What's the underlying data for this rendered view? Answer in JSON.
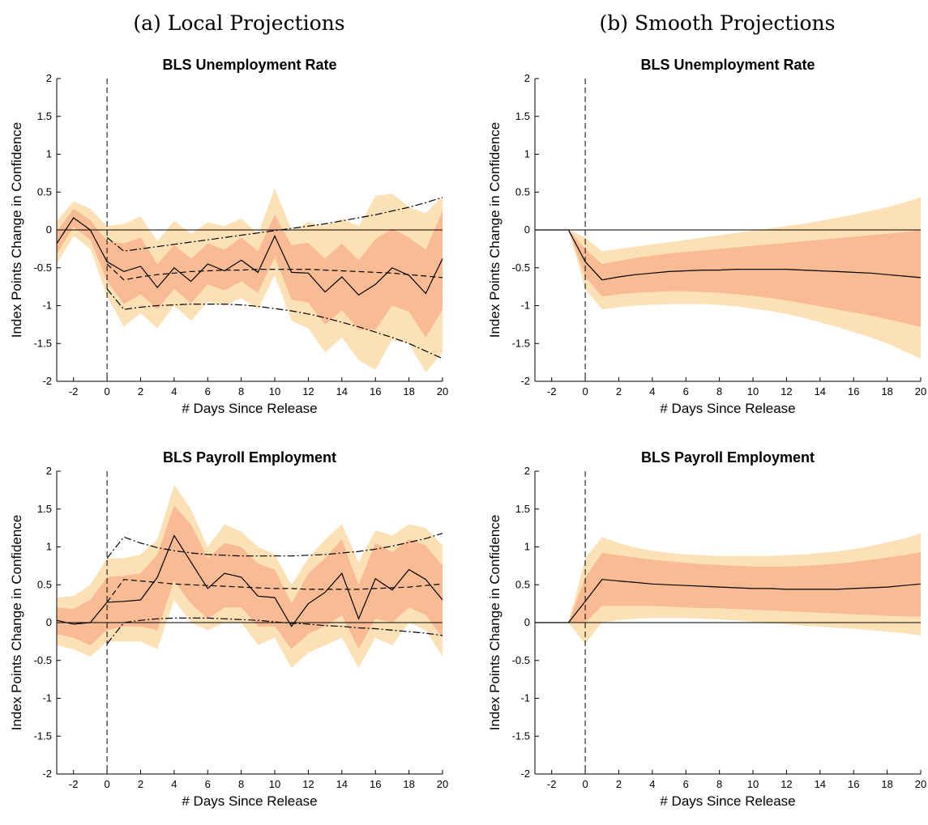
{
  "columns": {
    "left": "(a) Local Projections",
    "right": "(b) Smooth Projections"
  },
  "colors": {
    "band_outer": "#fde1b6",
    "band_inner": "#f9bb93",
    "line": "#000000"
  },
  "chart_data": [
    {
      "type": "line",
      "title": "BLS Unemployment Rate",
      "xlabel": "# Days Since Release",
      "ylabel": "Index Points Change in Confidence",
      "xlim": [
        -3,
        20
      ],
      "ylim": [
        -2,
        2
      ],
      "xticks": [
        "-2",
        "0",
        "2",
        "4",
        "6",
        "8",
        "10",
        "12",
        "14",
        "16",
        "18",
        "20"
      ],
      "yticks": [
        "-2",
        "-1.5",
        "-1",
        "-0.5",
        "0",
        "0.5",
        "1",
        "1.5",
        "2"
      ],
      "x": [
        -3,
        -2,
        -1,
        0,
        1,
        2,
        3,
        4,
        5,
        6,
        7,
        8,
        9,
        10,
        11,
        12,
        13,
        14,
        15,
        16,
        17,
        18,
        19,
        20
      ],
      "series": [
        {
          "role": "point",
          "style": "solid",
          "values": [
            -0.18,
            0.16,
            0.0,
            -0.42,
            -0.55,
            -0.48,
            -0.76,
            -0.5,
            -0.68,
            -0.45,
            -0.54,
            -0.4,
            -0.56,
            -0.08,
            -0.56,
            -0.57,
            -0.82,
            -0.62,
            -0.86,
            -0.72,
            -0.5,
            -0.6,
            -0.84,
            -0.38
          ]
        },
        {
          "role": "band90",
          "low": [
            -0.45,
            -0.08,
            -0.25,
            -0.88,
            -1.28,
            -1.1,
            -1.3,
            -1.0,
            -1.2,
            -0.95,
            -1.0,
            -0.9,
            -1.05,
            -0.6,
            -1.2,
            -1.3,
            -1.62,
            -1.42,
            -1.72,
            -1.85,
            -1.45,
            -1.5,
            -1.88,
            -1.62
          ],
          "high": [
            0.12,
            0.38,
            0.28,
            0.05,
            0.08,
            0.18,
            -0.15,
            0.12,
            -0.05,
            0.1,
            0.05,
            0.15,
            -0.05,
            0.55,
            0.0,
            0.1,
            0.05,
            0.15,
            0.05,
            0.45,
            0.48,
            0.3,
            0.22,
            0.45
          ]
        },
        {
          "role": "band68",
          "low": [
            -0.32,
            0.04,
            -0.13,
            -0.68,
            -0.98,
            -0.85,
            -1.05,
            -0.78,
            -0.97,
            -0.72,
            -0.8,
            -0.68,
            -0.83,
            -0.36,
            -0.92,
            -0.96,
            -1.25,
            -1.06,
            -1.32,
            -1.32,
            -1.0,
            -1.08,
            -1.42,
            -1.05
          ],
          "high": [
            -0.02,
            0.28,
            0.13,
            -0.15,
            -0.18,
            -0.1,
            -0.45,
            -0.2,
            -0.38,
            -0.18,
            -0.26,
            -0.1,
            -0.28,
            0.2,
            -0.2,
            -0.17,
            -0.38,
            -0.18,
            -0.4,
            -0.12,
            0.02,
            -0.1,
            -0.26,
            0.25
          ]
        },
        {
          "role": "smooth",
          "style": "dashed",
          "values": [
            null,
            null,
            null,
            -0.45,
            -0.66,
            -0.62,
            -0.59,
            -0.57,
            -0.55,
            -0.54,
            -0.53,
            -0.53,
            -0.52,
            -0.52,
            -0.52,
            -0.52,
            -0.53,
            -0.54,
            -0.55,
            -0.56,
            -0.57,
            -0.59,
            -0.61,
            -0.63
          ]
        },
        {
          "role": "smooth_upper",
          "style": "dashdot",
          "values": [
            null,
            null,
            null,
            -0.1,
            -0.28,
            -0.25,
            -0.22,
            -0.19,
            -0.16,
            -0.13,
            -0.1,
            -0.07,
            -0.04,
            -0.01,
            0.02,
            0.05,
            0.08,
            0.12,
            0.16,
            0.2,
            0.25,
            0.3,
            0.36,
            0.43
          ]
        },
        {
          "role": "smooth_lower",
          "style": "dashdot",
          "values": [
            null,
            null,
            null,
            -0.78,
            -1.05,
            -1.02,
            -1.0,
            -0.99,
            -0.98,
            -0.98,
            -0.98,
            -0.99,
            -1.01,
            -1.04,
            -1.07,
            -1.11,
            -1.16,
            -1.22,
            -1.28,
            -1.35,
            -1.42,
            -1.5,
            -1.6,
            -1.7
          ]
        }
      ]
    },
    {
      "type": "line",
      "title": "BLS Unemployment Rate",
      "xlabel": "# Days Since Release",
      "ylabel": "Index Points Change in Confidence",
      "xlim": [
        -3,
        20
      ],
      "ylim": [
        -2,
        2
      ],
      "xticks": [
        "-2",
        "0",
        "2",
        "4",
        "6",
        "8",
        "10",
        "12",
        "14",
        "16",
        "18",
        "20"
      ],
      "yticks": [
        "-2",
        "-1.5",
        "-1",
        "-0.5",
        "0",
        "0.5",
        "1",
        "1.5",
        "2"
      ],
      "x": [
        -3,
        -2,
        -1,
        0,
        1,
        2,
        3,
        4,
        5,
        6,
        7,
        8,
        9,
        10,
        11,
        12,
        13,
        14,
        15,
        16,
        17,
        18,
        19,
        20
      ],
      "series": [
        {
          "role": "point",
          "style": "solid",
          "values": [
            0,
            0,
            0,
            -0.42,
            -0.66,
            -0.62,
            -0.59,
            -0.57,
            -0.55,
            -0.54,
            -0.53,
            -0.53,
            -0.52,
            -0.52,
            -0.52,
            -0.52,
            -0.53,
            -0.54,
            -0.55,
            -0.56,
            -0.57,
            -0.59,
            -0.61,
            -0.63
          ]
        },
        {
          "role": "band90",
          "low": [
            0,
            0,
            0,
            -0.78,
            -1.05,
            -1.02,
            -1.0,
            -0.99,
            -0.98,
            -0.98,
            -0.98,
            -0.99,
            -1.01,
            -1.04,
            -1.07,
            -1.11,
            -1.16,
            -1.22,
            -1.28,
            -1.35,
            -1.42,
            -1.5,
            -1.6,
            -1.7
          ],
          "high": [
            0,
            0,
            0,
            -0.1,
            -0.28,
            -0.25,
            -0.22,
            -0.19,
            -0.16,
            -0.13,
            -0.1,
            -0.07,
            -0.04,
            -0.01,
            0.02,
            0.05,
            0.08,
            0.12,
            0.16,
            0.2,
            0.25,
            0.3,
            0.36,
            0.43
          ]
        },
        {
          "role": "band68",
          "low": [
            0,
            0,
            0,
            -0.62,
            -0.88,
            -0.85,
            -0.83,
            -0.82,
            -0.81,
            -0.81,
            -0.82,
            -0.83,
            -0.85,
            -0.87,
            -0.9,
            -0.93,
            -0.97,
            -1.01,
            -1.05,
            -1.09,
            -1.13,
            -1.18,
            -1.23,
            -1.28
          ],
          "high": [
            0,
            0,
            0,
            -0.25,
            -0.45,
            -0.41,
            -0.37,
            -0.34,
            -0.31,
            -0.29,
            -0.27,
            -0.25,
            -0.23,
            -0.21,
            -0.19,
            -0.17,
            -0.15,
            -0.13,
            -0.11,
            -0.09,
            -0.07,
            -0.05,
            -0.03,
            0.0
          ]
        }
      ]
    },
    {
      "type": "line",
      "title": "BLS Payroll Employment",
      "xlabel": "# Days Since Release",
      "ylabel": "Index Points Change in Confidence",
      "xlim": [
        -3,
        20
      ],
      "ylim": [
        -2,
        2
      ],
      "xticks": [
        "-2",
        "0",
        "2",
        "4",
        "6",
        "8",
        "10",
        "12",
        "14",
        "16",
        "18",
        "20"
      ],
      "yticks": [
        "-2",
        "-1.5",
        "-1",
        "-0.5",
        "0",
        "0.5",
        "1",
        "1.5",
        "2"
      ],
      "x": [
        -3,
        -2,
        -1,
        0,
        1,
        2,
        3,
        4,
        5,
        6,
        7,
        8,
        9,
        10,
        11,
        12,
        13,
        14,
        15,
        16,
        17,
        18,
        19,
        20
      ],
      "series": [
        {
          "role": "point",
          "style": "solid",
          "values": [
            0.03,
            -0.02,
            0.0,
            0.27,
            0.28,
            0.3,
            0.6,
            1.15,
            0.8,
            0.45,
            0.65,
            0.6,
            0.35,
            0.33,
            -0.05,
            0.25,
            0.4,
            0.65,
            0.05,
            0.58,
            0.43,
            0.7,
            0.57,
            0.3
          ]
        },
        {
          "role": "band90",
          "low": [
            -0.3,
            -0.35,
            -0.45,
            -0.25,
            -0.25,
            -0.25,
            -0.35,
            0.3,
            0.0,
            -0.1,
            0.0,
            0.0,
            -0.3,
            -0.2,
            -0.6,
            -0.4,
            -0.3,
            -0.2,
            -0.6,
            -0.2,
            -0.3,
            0.0,
            -0.1,
            -0.45
          ],
          "high": [
            0.33,
            0.35,
            0.5,
            0.85,
            0.85,
            0.9,
            1.1,
            1.82,
            1.5,
            1.0,
            1.3,
            1.2,
            1.0,
            0.9,
            0.5,
            0.85,
            1.1,
            1.3,
            0.8,
            1.22,
            1.15,
            1.3,
            1.25,
            1.02
          ]
        },
        {
          "role": "band68",
          "low": [
            -0.15,
            -0.2,
            -0.3,
            -0.1,
            -0.05,
            -0.05,
            -0.1,
            0.55,
            0.25,
            0.05,
            0.2,
            0.2,
            -0.05,
            -0.05,
            -0.35,
            -0.15,
            -0.05,
            0.1,
            -0.35,
            0.05,
            0.0,
            0.2,
            0.1,
            -0.2
          ],
          "high": [
            0.2,
            0.18,
            0.3,
            0.6,
            0.62,
            0.65,
            0.9,
            1.55,
            1.3,
            0.85,
            1.05,
            1.0,
            0.78,
            0.7,
            0.25,
            0.65,
            0.85,
            1.1,
            0.5,
            1.05,
            0.93,
            1.1,
            1.02,
            0.75
          ]
        },
        {
          "role": "smooth",
          "style": "dashed",
          "values": [
            null,
            null,
            null,
            0.27,
            0.57,
            0.55,
            0.53,
            0.51,
            0.5,
            0.49,
            0.48,
            0.47,
            0.46,
            0.45,
            0.45,
            0.44,
            0.44,
            0.44,
            0.44,
            0.45,
            0.46,
            0.47,
            0.49,
            0.51
          ]
        },
        {
          "role": "smooth_upper",
          "style": "dashdot",
          "values": [
            null,
            null,
            null,
            0.85,
            1.13,
            1.05,
            0.99,
            0.95,
            0.92,
            0.9,
            0.89,
            0.88,
            0.88,
            0.88,
            0.88,
            0.89,
            0.9,
            0.92,
            0.94,
            0.97,
            1.01,
            1.06,
            1.11,
            1.18
          ]
        },
        {
          "role": "smooth_lower",
          "style": "dashdot",
          "values": [
            null,
            null,
            null,
            -0.28,
            0.0,
            0.03,
            0.05,
            0.06,
            0.06,
            0.06,
            0.05,
            0.04,
            0.03,
            0.01,
            -0.01,
            -0.02,
            -0.04,
            -0.05,
            -0.07,
            -0.08,
            -0.1,
            -0.12,
            -0.14,
            -0.17
          ]
        }
      ]
    },
    {
      "type": "line",
      "title": "BLS Payroll Employment",
      "xlabel": "# Days Since Release",
      "ylabel": "Index Points Change in Confidence",
      "xlim": [
        -3,
        20
      ],
      "ylim": [
        -2,
        2
      ],
      "xticks": [
        "-2",
        "0",
        "2",
        "4",
        "6",
        "8",
        "10",
        "12",
        "14",
        "16",
        "18",
        "20"
      ],
      "yticks": [
        "-2",
        "-1.5",
        "-1",
        "-0.5",
        "0",
        "0.5",
        "1",
        "1.5",
        "2"
      ],
      "x": [
        -3,
        -2,
        -1,
        0,
        1,
        2,
        3,
        4,
        5,
        6,
        7,
        8,
        9,
        10,
        11,
        12,
        13,
        14,
        15,
        16,
        17,
        18,
        19,
        20
      ],
      "series": [
        {
          "role": "point",
          "style": "solid",
          "values": [
            0,
            0,
            0,
            0.28,
            0.57,
            0.55,
            0.53,
            0.51,
            0.5,
            0.49,
            0.48,
            0.47,
            0.46,
            0.45,
            0.45,
            0.44,
            0.44,
            0.44,
            0.44,
            0.45,
            0.46,
            0.47,
            0.49,
            0.51
          ]
        },
        {
          "role": "band90",
          "low": [
            0,
            0,
            0,
            -0.28,
            0.0,
            0.03,
            0.05,
            0.06,
            0.06,
            0.06,
            0.05,
            0.04,
            0.03,
            0.01,
            -0.01,
            -0.02,
            -0.04,
            -0.05,
            -0.07,
            -0.08,
            -0.1,
            -0.12,
            -0.14,
            -0.17
          ],
          "high": [
            0,
            0,
            0,
            0.85,
            1.13,
            1.05,
            0.99,
            0.95,
            0.92,
            0.9,
            0.89,
            0.88,
            0.88,
            0.88,
            0.88,
            0.89,
            0.9,
            0.92,
            0.94,
            0.97,
            1.01,
            1.06,
            1.11,
            1.18
          ]
        },
        {
          "role": "band68",
          "low": [
            0,
            0,
            0,
            0.0,
            0.22,
            0.22,
            0.22,
            0.22,
            0.21,
            0.2,
            0.19,
            0.19,
            0.18,
            0.17,
            0.16,
            0.15,
            0.14,
            0.13,
            0.12,
            0.11,
            0.1,
            0.09,
            0.08,
            0.08
          ],
          "high": [
            0,
            0,
            0,
            0.6,
            0.92,
            0.89,
            0.86,
            0.83,
            0.81,
            0.79,
            0.77,
            0.76,
            0.75,
            0.74,
            0.74,
            0.74,
            0.75,
            0.76,
            0.78,
            0.8,
            0.83,
            0.86,
            0.89,
            0.93
          ]
        }
      ]
    }
  ]
}
